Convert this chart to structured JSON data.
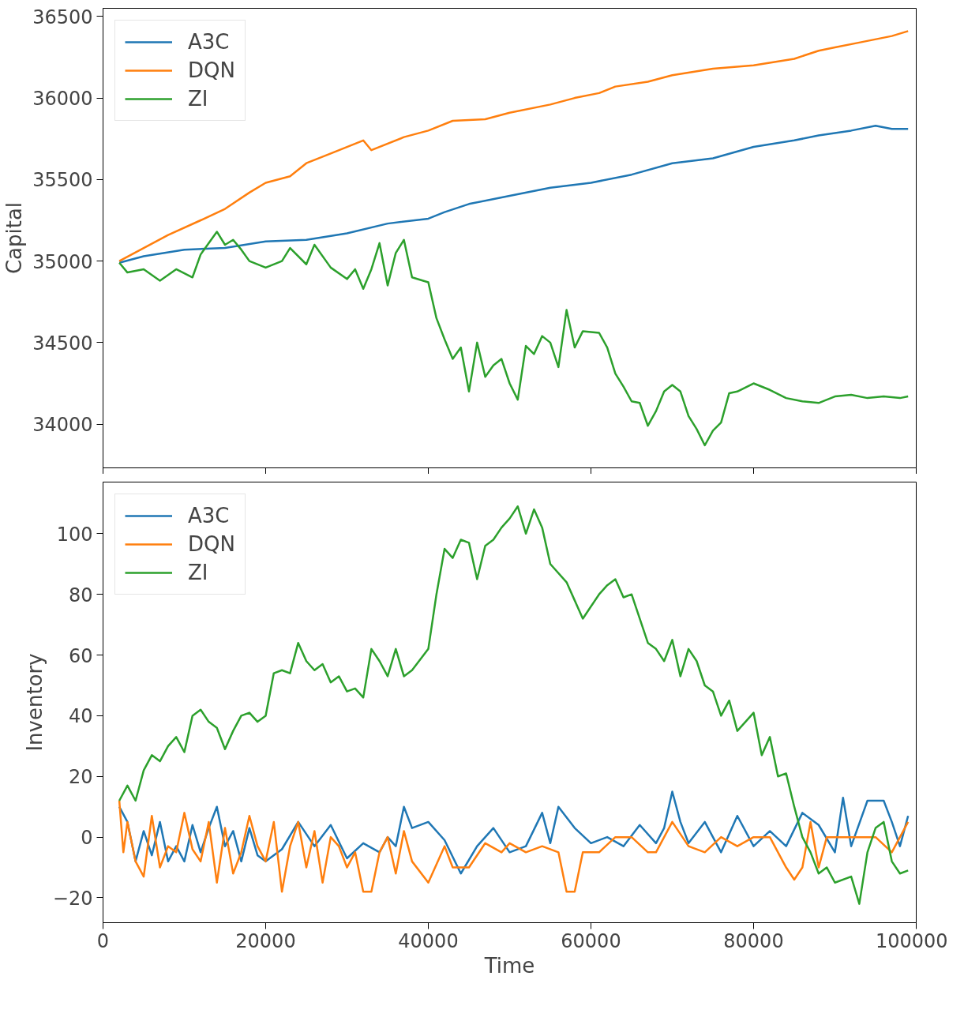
{
  "chart_data": [
    {
      "type": "line",
      "ylabel": "Capital",
      "xlim": [
        0,
        100000
      ],
      "ylim": [
        33732,
        36550
      ],
      "xticks": [
        0,
        20000,
        40000,
        60000,
        80000,
        100000
      ],
      "yticks": [
        34000,
        34500,
        35000,
        35500,
        36000,
        36500
      ],
      "tick_labels": "y",
      "legend": "top left",
      "grid": false,
      "series": [
        {
          "name": "A3C",
          "color": "#1f77b4",
          "x": [
            2000,
            5000,
            10000,
            15000,
            20000,
            25000,
            30000,
            35000,
            40000,
            42000,
            45000,
            50000,
            55000,
            60000,
            65000,
            70000,
            75000,
            80000,
            85000,
            88000,
            92000,
            95000,
            97000,
            99000
          ],
          "values": [
            34990,
            35030,
            35070,
            35080,
            35120,
            35130,
            35170,
            35230,
            35260,
            35300,
            35350,
            35400,
            35450,
            35480,
            35530,
            35600,
            35630,
            35700,
            35740,
            35770,
            35800,
            35830,
            35810,
            35810
          ]
        },
        {
          "name": "DQN",
          "color": "#ff7f0e",
          "x": [
            2000,
            5000,
            8000,
            12000,
            15000,
            18000,
            20000,
            23000,
            25000,
            28000,
            32000,
            33000,
            37000,
            40000,
            43000,
            47000,
            50000,
            55000,
            58000,
            61000,
            63000,
            67000,
            70000,
            75000,
            80000,
            85000,
            88000,
            90000,
            93000,
            97000,
            99000
          ],
          "values": [
            35000,
            35080,
            35160,
            35250,
            35320,
            35420,
            35480,
            35520,
            35600,
            35660,
            35740,
            35680,
            35760,
            35800,
            35860,
            35870,
            35910,
            35960,
            36000,
            36030,
            36070,
            36100,
            36140,
            36180,
            36200,
            36240,
            36290,
            36310,
            36340,
            36380,
            36410
          ]
        },
        {
          "name": "ZI",
          "color": "#2ca02c",
          "x": [
            2000,
            3000,
            5000,
            7000,
            9000,
            11000,
            12000,
            14000,
            15000,
            16000,
            17000,
            18000,
            20000,
            22000,
            23000,
            25000,
            26000,
            28000,
            30000,
            31000,
            32000,
            33000,
            34000,
            35000,
            36000,
            37000,
            38000,
            40000,
            41000,
            42000,
            43000,
            44000,
            45000,
            46000,
            47000,
            48000,
            49000,
            50000,
            51000,
            52000,
            53000,
            54000,
            55000,
            56000,
            57000,
            58000,
            59000,
            61000,
            62000,
            63000,
            64000,
            65000,
            66000,
            67000,
            68000,
            69000,
            70000,
            71000,
            72000,
            73000,
            74000,
            75000,
            76000,
            77000,
            78000,
            80000,
            82000,
            84000,
            86000,
            88000,
            90000,
            92000,
            94000,
            96000,
            98000,
            99000
          ],
          "values": [
            34990,
            34930,
            34950,
            34880,
            34950,
            34900,
            35040,
            35180,
            35100,
            35130,
            35070,
            35000,
            34960,
            35000,
            35080,
            34980,
            35100,
            34960,
            34890,
            34950,
            34830,
            34950,
            35110,
            34850,
            35050,
            35130,
            34900,
            34870,
            34650,
            34520,
            34400,
            34470,
            34200,
            34500,
            34290,
            34360,
            34400,
            34250,
            34150,
            34480,
            34430,
            34540,
            34500,
            34350,
            34700,
            34470,
            34570,
            34560,
            34470,
            34310,
            34230,
            34140,
            34130,
            33990,
            34080,
            34200,
            34240,
            34200,
            34050,
            33970,
            33870,
            33960,
            34010,
            34190,
            34200,
            34250,
            34210,
            34160,
            34140,
            34130,
            34170,
            34180,
            34160,
            34170,
            34160,
            34170
          ]
        }
      ]
    },
    {
      "type": "line",
      "xlabel": "Time",
      "ylabel": "Inventory",
      "xlim": [
        0,
        100000
      ],
      "ylim": [
        -28.2,
        117
      ],
      "xticks": [
        0,
        20000,
        40000,
        60000,
        80000,
        100000
      ],
      "yticks": [
        {
          "value": -20,
          "label": "−20"
        },
        0,
        20,
        40,
        60,
        80,
        100
      ],
      "legend": "top left",
      "grid": false,
      "series": [
        {
          "name": "A3C",
          "color": "#1f77b4",
          "x": [
            2000,
            3000,
            4000,
            5000,
            6000,
            7000,
            8000,
            9000,
            10000,
            11000,
            12000,
            13000,
            14000,
            15000,
            16000,
            17000,
            18000,
            19000,
            20000,
            22000,
            24000,
            26000,
            28000,
            30000,
            32000,
            34000,
            35000,
            36000,
            37000,
            38000,
            40000,
            42000,
            44000,
            46000,
            48000,
            50000,
            52000,
            54000,
            55000,
            56000,
            58000,
            60000,
            62000,
            64000,
            66000,
            68000,
            69000,
            70000,
            71000,
            72000,
            74000,
            76000,
            78000,
            80000,
            82000,
            84000,
            86000,
            88000,
            90000,
            91000,
            92000,
            94000,
            96000,
            97000,
            98000,
            99000
          ],
          "values": [
            10,
            5,
            -8,
            2,
            -6,
            5,
            -8,
            -3,
            -8,
            4,
            -5,
            3,
            10,
            -3,
            2,
            -8,
            3,
            -6,
            -8,
            -4,
            5,
            -3,
            4,
            -7,
            -2,
            -5,
            0,
            -3,
            10,
            3,
            5,
            -1,
            -12,
            -3,
            3,
            -5,
            -3,
            8,
            -2,
            10,
            3,
            -2,
            0,
            -3,
            4,
            -2,
            3,
            15,
            5,
            -2,
            5,
            -5,
            7,
            -3,
            2,
            -3,
            8,
            4,
            -5,
            13,
            -3,
            12,
            12,
            5,
            -3,
            7
          ]
        },
        {
          "name": "DQN",
          "color": "#ff7f0e",
          "x": [
            2000,
            2500,
            3000,
            4000,
            5000,
            6000,
            7000,
            8000,
            9000,
            10000,
            11000,
            12000,
            13000,
            14000,
            15000,
            16000,
            17000,
            18000,
            19000,
            20000,
            21000,
            22000,
            23000,
            24000,
            25000,
            26000,
            27000,
            28000,
            29000,
            30000,
            31000,
            32000,
            33000,
            34000,
            35000,
            36000,
            37000,
            38000,
            40000,
            42000,
            43000,
            45000,
            47000,
            49000,
            50000,
            52000,
            54000,
            56000,
            57000,
            58000,
            59000,
            61000,
            63000,
            65000,
            67000,
            68000,
            70000,
            72000,
            74000,
            76000,
            78000,
            80000,
            82000,
            84000,
            85000,
            86000,
            87000,
            88000,
            89000,
            92000,
            95000,
            97000,
            98000,
            99000
          ],
          "values": [
            12,
            -5,
            5,
            -8,
            -13,
            7,
            -10,
            -3,
            -5,
            8,
            -4,
            -8,
            5,
            -15,
            3,
            -12,
            -5,
            7,
            -3,
            -8,
            5,
            -18,
            -3,
            5,
            -10,
            2,
            -15,
            0,
            -3,
            -10,
            -5,
            -18,
            -18,
            -5,
            0,
            -12,
            2,
            -8,
            -15,
            -3,
            -10,
            -10,
            -2,
            -5,
            -2,
            -5,
            -3,
            -5,
            -18,
            -18,
            -5,
            -5,
            0,
            0,
            -5,
            -5,
            5,
            -3,
            -5,
            0,
            -3,
            0,
            0,
            -10,
            -14,
            -10,
            5,
            -10,
            0,
            0,
            0,
            -5,
            0,
            5
          ]
        },
        {
          "name": "ZI",
          "color": "#2ca02c",
          "x": [
            2000,
            3000,
            4000,
            5000,
            6000,
            7000,
            8000,
            9000,
            10000,
            11000,
            12000,
            13000,
            14000,
            15000,
            16000,
            17000,
            18000,
            19000,
            20000,
            21000,
            22000,
            23000,
            24000,
            25000,
            26000,
            27000,
            28000,
            29000,
            30000,
            31000,
            32000,
            33000,
            34000,
            35000,
            36000,
            37000,
            38000,
            40000,
            41000,
            42000,
            43000,
            44000,
            45000,
            46000,
            47000,
            48000,
            49000,
            50000,
            51000,
            52000,
            53000,
            54000,
            55000,
            57000,
            58000,
            59000,
            60000,
            61000,
            62000,
            63000,
            64000,
            65000,
            66000,
            67000,
            68000,
            69000,
            70000,
            71000,
            72000,
            73000,
            74000,
            75000,
            76000,
            77000,
            78000,
            80000,
            81000,
            82000,
            83000,
            84000,
            85000,
            86000,
            87000,
            88000,
            89000,
            90000,
            92000,
            93000,
            94000,
            95000,
            96000,
            97000,
            98000,
            99000
          ],
          "values": [
            12,
            17,
            12,
            22,
            27,
            25,
            30,
            33,
            28,
            40,
            42,
            38,
            36,
            29,
            35,
            40,
            41,
            38,
            40,
            54,
            55,
            54,
            64,
            58,
            55,
            57,
            51,
            53,
            48,
            49,
            46,
            62,
            58,
            53,
            62,
            53,
            55,
            62,
            80,
            95,
            92,
            98,
            97,
            85,
            96,
            98,
            102,
            105,
            109,
            100,
            108,
            102,
            90,
            84,
            78,
            72,
            76,
            80,
            83,
            85,
            79,
            80,
            72,
            64,
            62,
            58,
            65,
            53,
            62,
            58,
            50,
            48,
            40,
            45,
            35,
            41,
            27,
            33,
            20,
            21,
            10,
            0,
            -5,
            -12,
            -10,
            -15,
            -13,
            -22,
            -5,
            3,
            5,
            -8,
            -12,
            -11
          ]
        }
      ]
    }
  ]
}
